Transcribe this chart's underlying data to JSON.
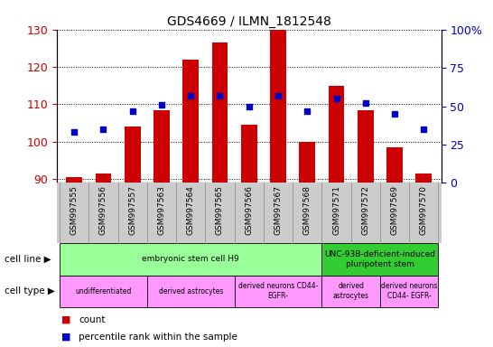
{
  "title": "GDS4669 / ILMN_1812548",
  "samples": [
    "GSM997555",
    "GSM997556",
    "GSM997557",
    "GSM997563",
    "GSM997564",
    "GSM997565",
    "GSM997566",
    "GSM997567",
    "GSM997568",
    "GSM997571",
    "GSM997572",
    "GSM997569",
    "GSM997570"
  ],
  "counts": [
    90.5,
    91.5,
    104,
    108.5,
    122,
    126.5,
    104.5,
    130,
    100,
    115,
    108.5,
    98.5,
    91.5
  ],
  "percentile": [
    33,
    35,
    47,
    51,
    57,
    57,
    50,
    57,
    47,
    55,
    52,
    45,
    35
  ],
  "ylim_left": [
    89,
    130
  ],
  "ylim_right": [
    0,
    100
  ],
  "yticks_left": [
    90,
    100,
    110,
    120,
    130
  ],
  "yticks_right": [
    0,
    25,
    50,
    75,
    100
  ],
  "bar_color": "#cc0000",
  "dot_color": "#0000cc",
  "bar_bottom": 89,
  "cell_line_groups": [
    {
      "label": "embryonic stem cell H9",
      "start": 0,
      "end": 9,
      "color": "#99ff99"
    },
    {
      "label": "UNC-93B-deficient-induced\npluripotent stem",
      "start": 9,
      "end": 13,
      "color": "#33cc33"
    }
  ],
  "cell_type_groups": [
    {
      "label": "undifferentiated",
      "start": 0,
      "end": 3,
      "color": "#ff99ff"
    },
    {
      "label": "derived astrocytes",
      "start": 3,
      "end": 6,
      "color": "#ff99ff"
    },
    {
      "label": "derived neurons CD44-\nEGFR-",
      "start": 6,
      "end": 9,
      "color": "#ff99ff"
    },
    {
      "label": "derived\nastrocytes",
      "start": 9,
      "end": 11,
      "color": "#ff99ff"
    },
    {
      "label": "derived neurons\nCD44- EGFR-",
      "start": 11,
      "end": 13,
      "color": "#ff99ff"
    }
  ],
  "bar_color_legend": "#cc0000",
  "dot_color_legend": "#0000cc",
  "left_tick_color": "#cc0000",
  "right_tick_color": "#0000cc"
}
